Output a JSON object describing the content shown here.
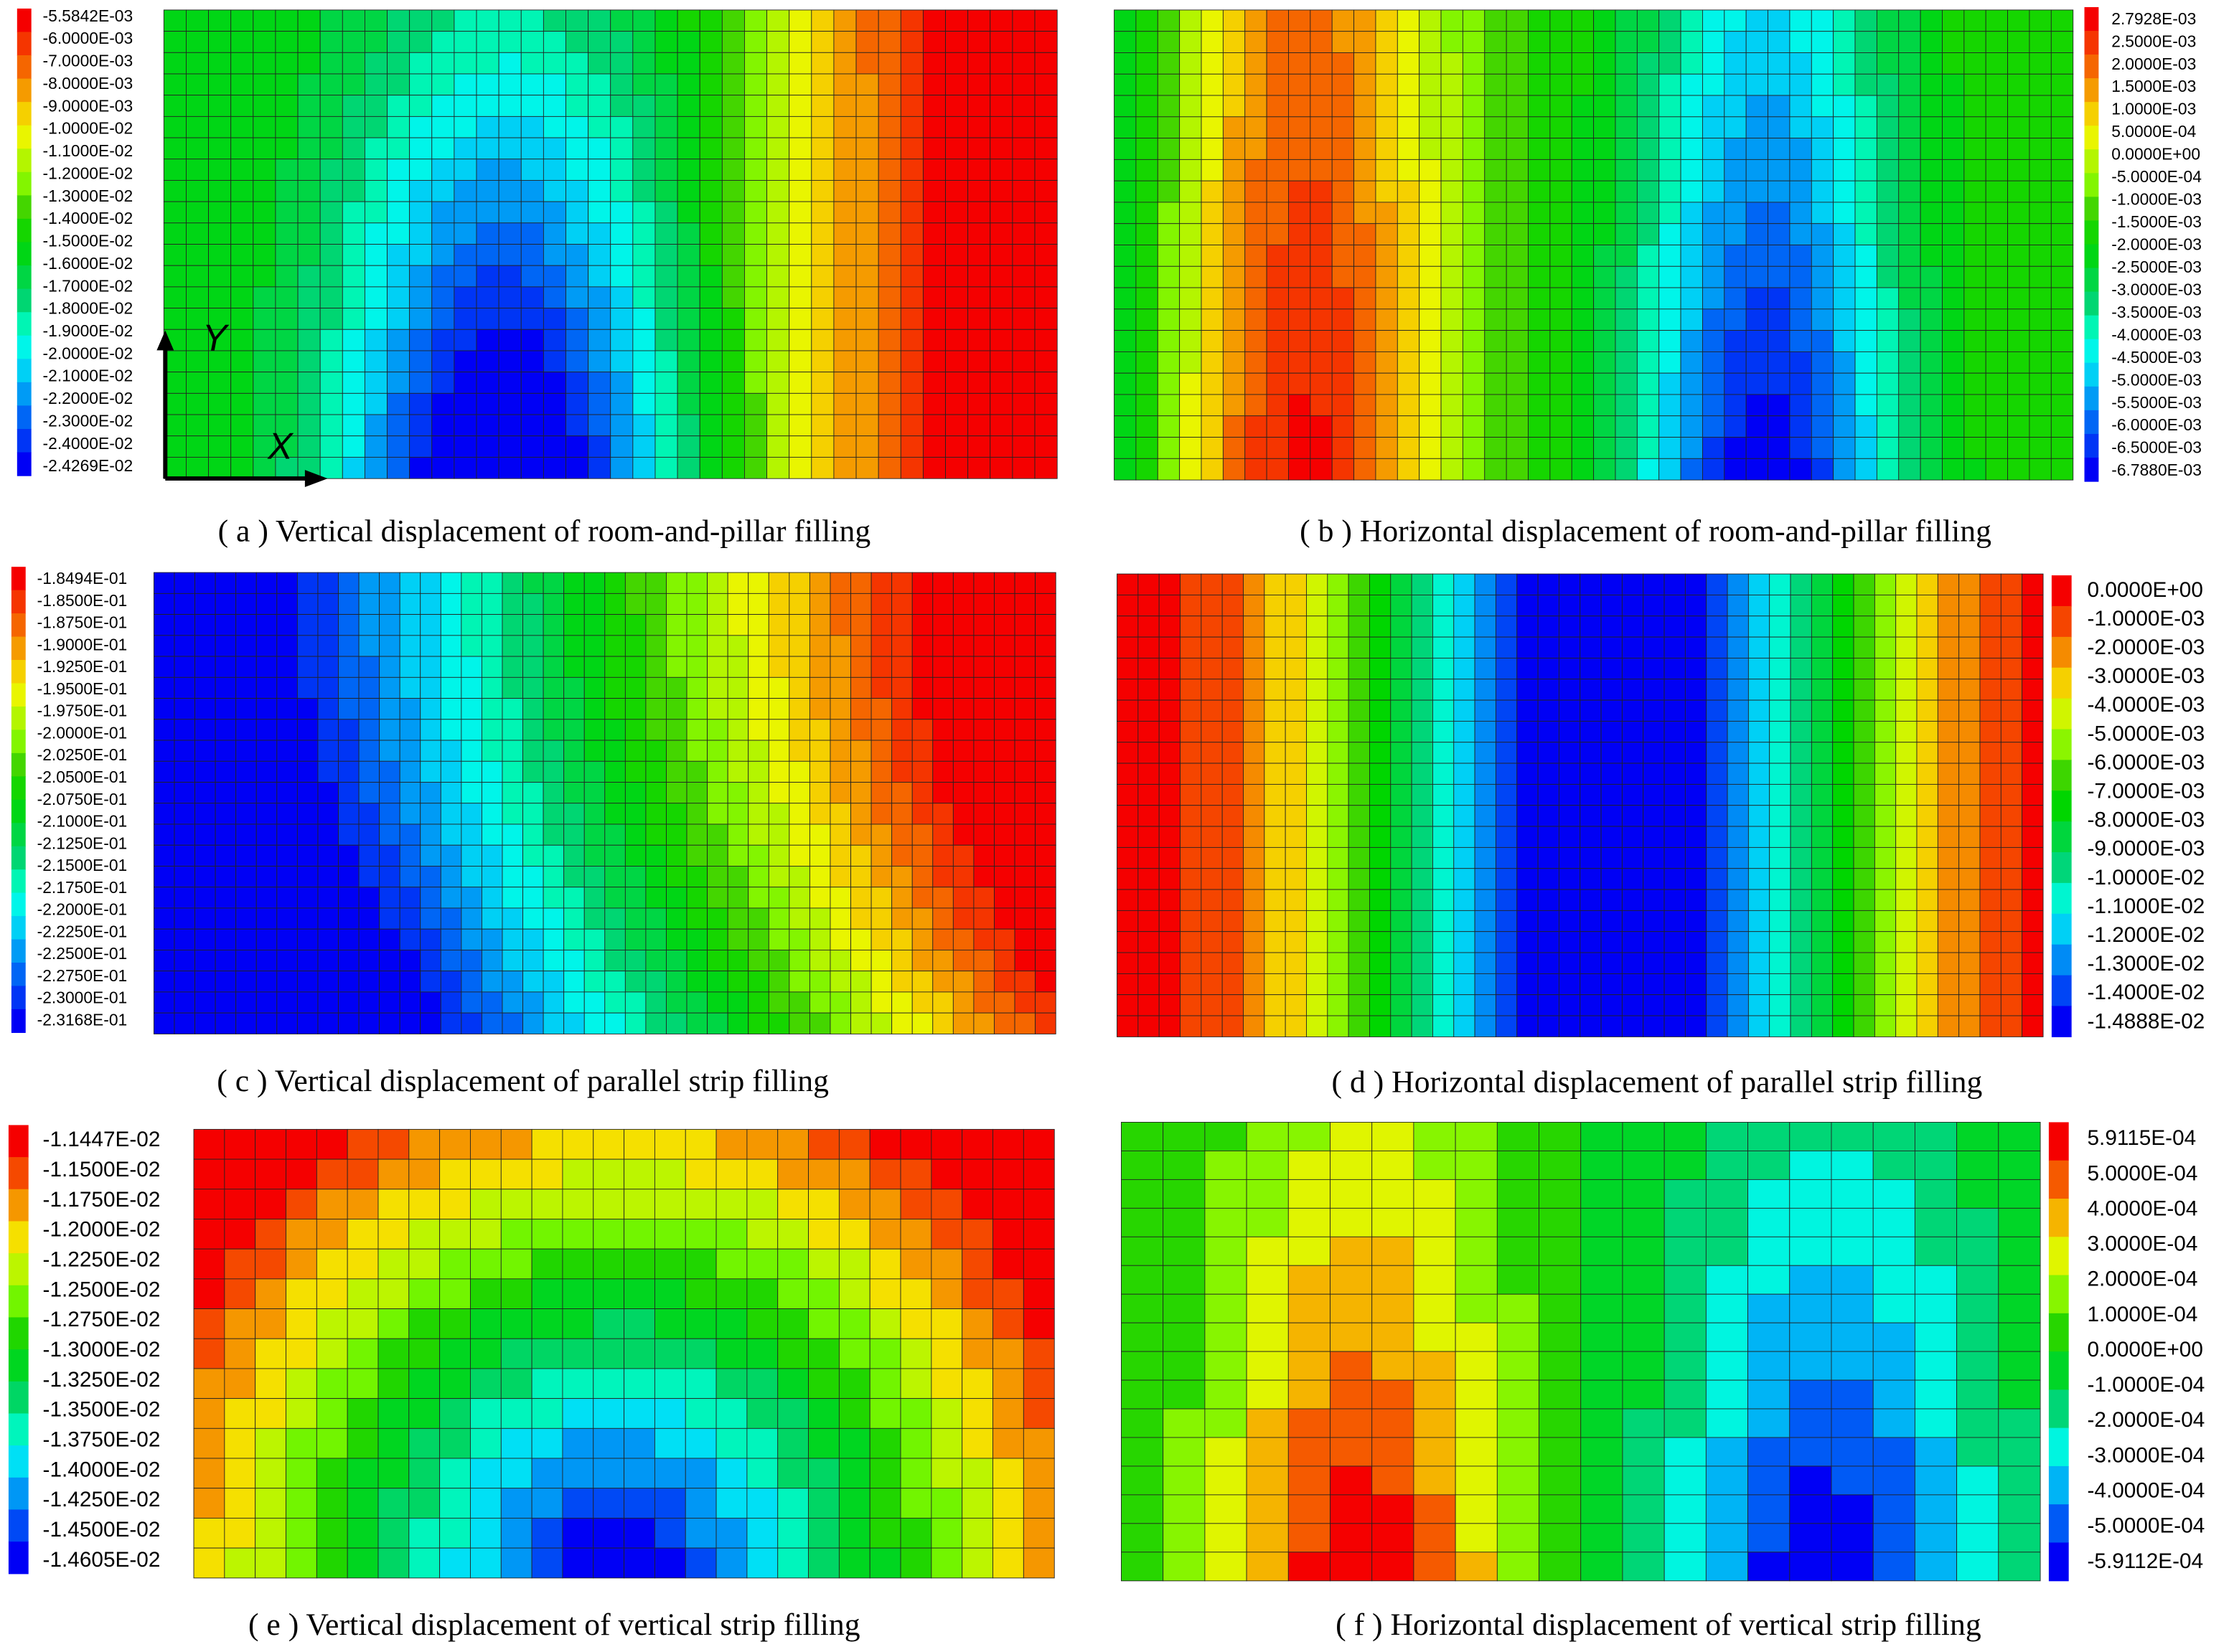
{
  "panels": [
    {
      "caption": "( a ) Vertical displacement of room-and-pillar filling",
      "legend": [
        "-5.5842E-03",
        "-6.0000E-03",
        "-7.0000E-03",
        "-8.0000E-03",
        "-9.0000E-03",
        "-1.0000E-02",
        "-1.1000E-02",
        "-1.2000E-02",
        "-1.3000E-02",
        "-1.4000E-02",
        "-1.5000E-02",
        "-1.6000E-02",
        "-1.7000E-02",
        "-1.8000E-02",
        "-1.9000E-02",
        "-2.0000E-02",
        "-2.1000E-02",
        "-2.2000E-02",
        "-2.3000E-02",
        "-2.4000E-02",
        "-2.4269E-02"
      ],
      "axis_labels": [
        "Y",
        "X"
      ]
    },
    {
      "caption": "( b ) Horizontal displacement of room-and-pillar filling",
      "legend": [
        "2.7928E-03",
        "2.5000E-03",
        "2.0000E-03",
        "1.5000E-03",
        "1.0000E-03",
        "5.0000E-04",
        "0.0000E+00",
        "-5.0000E-04",
        "-1.0000E-03",
        "-1.5000E-03",
        "-2.0000E-03",
        "-2.5000E-03",
        "-3.0000E-03",
        "-3.5000E-03",
        "-4.0000E-03",
        "-4.5000E-03",
        "-5.0000E-03",
        "-5.5000E-03",
        "-6.0000E-03",
        "-6.5000E-03",
        "-6.7880E-03"
      ]
    },
    {
      "caption": "( c ) Vertical displacement of parallel strip filling",
      "legend": [
        "-1.8494E-01",
        "-1.8500E-01",
        "-1.8750E-01",
        "-1.9000E-01",
        "-1.9250E-01",
        "-1.9500E-01",
        "-1.9750E-01",
        "-2.0000E-01",
        "-2.0250E-01",
        "-2.0500E-01",
        "-2.0750E-01",
        "-2.1000E-01",
        "-2.1250E-01",
        "-2.1500E-01",
        "-2.1750E-01",
        "-2.2000E-01",
        "-2.2250E-01",
        "-2.2500E-01",
        "-2.2750E-01",
        "-2.3000E-01",
        "-2.3168E-01"
      ]
    },
    {
      "caption": "( d ) Horizontal displacement of parallel strip filling",
      "legend": [
        "0.0000E+00",
        "-1.0000E-03",
        "-2.0000E-03",
        "-3.0000E-03",
        "-4.0000E-03",
        "-5.0000E-03",
        "-6.0000E-03",
        "-7.0000E-03",
        "-8.0000E-03",
        "-9.0000E-03",
        "-1.0000E-02",
        "-1.1000E-02",
        "-1.2000E-02",
        "-1.3000E-02",
        "-1.4000E-02",
        "-1.4888E-02"
      ]
    },
    {
      "caption": "( e ) Vertical displacement of vertical strip filling",
      "legend": [
        "-1.1447E-02",
        "-1.1500E-02",
        "-1.1750E-02",
        "-1.2000E-02",
        "-1.2250E-02",
        "-1.2500E-02",
        "-1.2750E-02",
        "-1.3000E-02",
        "-1.3250E-02",
        "-1.3500E-02",
        "-1.3750E-02",
        "-1.4000E-02",
        "-1.4250E-02",
        "-1.4500E-02",
        "-1.4605E-02"
      ]
    },
    {
      "caption": "( f ) Horizontal displacement of vertical strip filling",
      "legend": [
        "5.9115E-04",
        "5.0000E-04",
        "4.0000E-04",
        "3.0000E-04",
        "2.0000E-04",
        "1.0000E-04",
        "0.0000E+00",
        "-1.0000E-04",
        "-2.0000E-04",
        "-3.0000E-04",
        "-4.0000E-04",
        "-5.0000E-04",
        "-5.9112E-04"
      ]
    }
  ]
}
